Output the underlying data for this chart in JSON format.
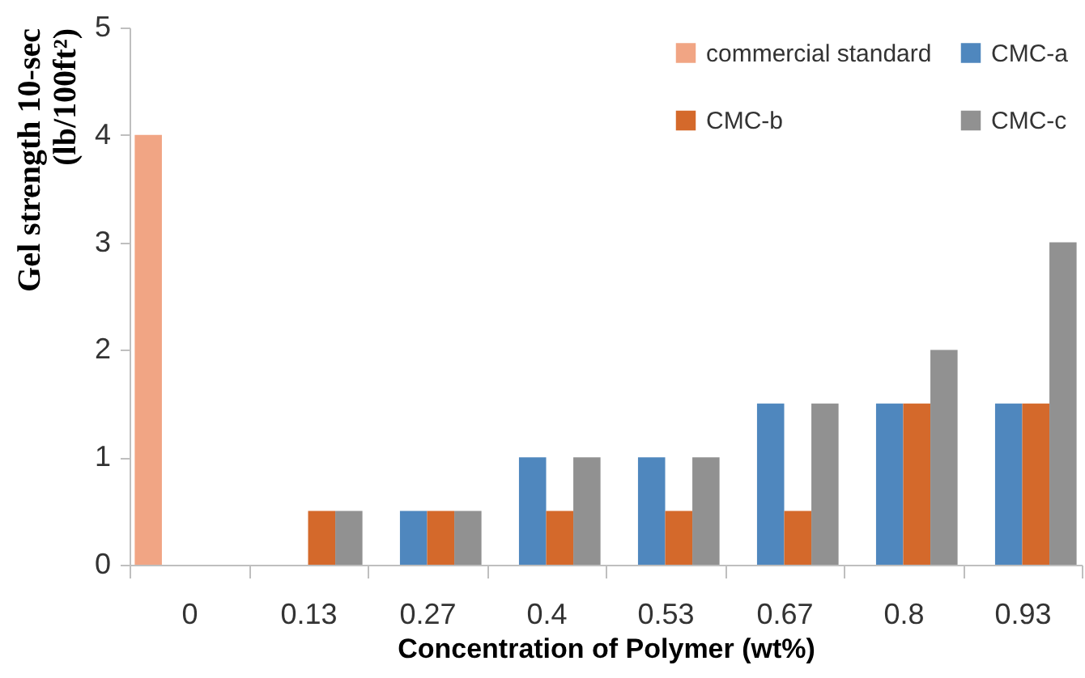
{
  "chart_data": {
    "type": "bar",
    "categories": [
      "0",
      "0.13",
      "0.27",
      "0.4",
      "0.53",
      "0.67",
      "0.8",
      "0.93"
    ],
    "series": [
      {
        "name": "commercial standard",
        "color": "#f1a584",
        "values": [
          4,
          null,
          null,
          null,
          null,
          null,
          null,
          null
        ]
      },
      {
        "name": "CMC-a",
        "color": "#4f87be",
        "values": [
          null,
          null,
          0.5,
          1,
          1,
          1.5,
          1.5,
          1.5
        ]
      },
      {
        "name": "CMC-b",
        "color": "#d4692b",
        "values": [
          null,
          0.5,
          0.5,
          0.5,
          0.5,
          0.5,
          1.5,
          1.5
        ]
      },
      {
        "name": "CMC-c",
        "color": "#919191",
        "values": [
          null,
          0.5,
          0.5,
          1,
          1,
          1.5,
          2,
          3
        ]
      }
    ],
    "xlabel": "Concentration of Polymer (wt%)",
    "ylabel": "Gel strength 10-sec\n(lb/100ft²)",
    "ylim": [
      0,
      5
    ],
    "yticks": [
      0,
      1,
      2,
      3,
      4,
      5
    ],
    "grid": false,
    "legend": "top right"
  }
}
